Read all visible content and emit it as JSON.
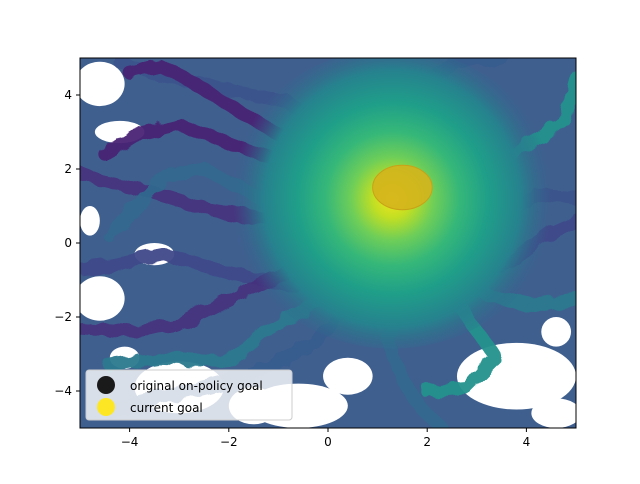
{
  "chart_data": {
    "type": "scatter",
    "title": "",
    "xlabel": "",
    "ylabel": "",
    "xlim": [
      -5,
      5
    ],
    "ylim": [
      -5,
      5
    ],
    "xticks": [
      -4,
      -2,
      0,
      2,
      4
    ],
    "yticks": [
      -4,
      -2,
      0,
      2,
      4
    ],
    "grid": false,
    "colormap": "viridis",
    "legend": {
      "location": "lower-left",
      "entries": [
        {
          "label": "original on-policy goal",
          "color": "#1a1a1a"
        },
        {
          "label": "current goal",
          "color": "#fde725"
        }
      ]
    },
    "current_goal": {
      "x": 1.5,
      "y": 1.5,
      "radius": 0.6,
      "color": "#d4b41c"
    },
    "trajectory_density_center": {
      "x": 1.3,
      "y": 1.2
    },
    "background_color": "#3f5f8f",
    "trajectories": [
      {
        "name": "",
        "points": [
          [
            1.3,
            1.2
          ],
          [
            0.2,
            0.4
          ],
          [
            -1.0,
            0.6
          ],
          [
            -2.4,
            0.9
          ],
          [
            -3.6,
            1.4
          ],
          [
            -4.6,
            1.7
          ],
          [
            -5.0,
            1.9
          ]
        ]
      },
      {
        "name": "",
        "points": [
          [
            1.3,
            1.2
          ],
          [
            0.5,
            -0.6
          ],
          [
            -0.6,
            -1.2
          ],
          [
            -2.0,
            -0.8
          ],
          [
            -3.3,
            -0.3
          ],
          [
            -4.4,
            -0.6
          ],
          [
            -5.0,
            -0.7
          ]
        ]
      },
      {
        "name": "",
        "points": [
          [
            1.3,
            1.2
          ],
          [
            0.6,
            -1.6
          ],
          [
            -0.4,
            -2.8
          ],
          [
            -1.6,
            -3.6
          ],
          [
            -2.8,
            -4.0
          ],
          [
            -3.8,
            -4.3
          ],
          [
            -4.4,
            -4.6
          ]
        ]
      },
      {
        "name": "",
        "points": [
          [
            1.3,
            1.2
          ],
          [
            1.6,
            -1.2
          ],
          [
            1.2,
            -2.6
          ],
          [
            1.5,
            -3.7
          ],
          [
            1.9,
            -4.5
          ],
          [
            2.3,
            -5.0
          ]
        ]
      },
      {
        "name": "",
        "points": [
          [
            1.3,
            1.2
          ],
          [
            2.4,
            -0.4
          ],
          [
            3.2,
            -1.4
          ],
          [
            4.2,
            -1.7
          ],
          [
            5.0,
            -1.5
          ]
        ]
      },
      {
        "name": "",
        "points": [
          [
            1.3,
            1.2
          ],
          [
            2.8,
            1.6
          ],
          [
            4.0,
            2.6
          ],
          [
            4.8,
            3.4
          ],
          [
            5.0,
            4.4
          ]
        ]
      },
      {
        "name": "",
        "points": [
          [
            1.3,
            1.2
          ],
          [
            0.3,
            2.8
          ],
          [
            -0.8,
            3.8
          ],
          [
            -2.2,
            4.2
          ],
          [
            -3.6,
            4.6
          ],
          [
            -4.2,
            4.9
          ]
        ]
      },
      {
        "name": "",
        "points": [
          [
            1.3,
            1.2
          ],
          [
            -0.4,
            2.0
          ],
          [
            -1.8,
            2.6
          ],
          [
            -3.0,
            3.2
          ],
          [
            -3.9,
            2.9
          ],
          [
            -4.5,
            2.4
          ]
        ]
      },
      {
        "name": "",
        "points": [
          [
            1.3,
            1.2
          ],
          [
            0.9,
            0.2
          ],
          [
            -0.4,
            -0.5
          ],
          [
            -1.8,
            -1.4
          ],
          [
            -3.0,
            -2.2
          ],
          [
            -4.0,
            -2.4
          ],
          [
            -5.0,
            -2.3
          ]
        ]
      },
      {
        "name": "",
        "points": [
          [
            1.3,
            1.2
          ],
          [
            2.2,
            0.1
          ],
          [
            3.0,
            -0.9
          ],
          [
            3.7,
            -0.5
          ],
          [
            4.5,
            0.3
          ],
          [
            5.0,
            0.6
          ]
        ]
      },
      {
        "name": "",
        "points": [
          [
            1.3,
            1.2
          ],
          [
            1.1,
            3.0
          ],
          [
            1.8,
            4.2
          ],
          [
            2.6,
            4.9
          ],
          [
            3.5,
            5.0
          ]
        ]
      },
      {
        "name": "",
        "points": [
          [
            1.3,
            1.2
          ],
          [
            -1.2,
            1.1
          ],
          [
            -2.5,
            2.0
          ],
          [
            -3.3,
            1.8
          ],
          [
            -4.0,
            0.8
          ],
          [
            -4.4,
            0.2
          ]
        ]
      },
      {
        "name": "",
        "points": [
          [
            1.3,
            1.2
          ],
          [
            -0.2,
            -1.6
          ],
          [
            -1.2,
            -2.3
          ],
          [
            -2.0,
            -3.2
          ],
          [
            -3.4,
            -3.1
          ],
          [
            -4.4,
            -3.3
          ]
        ]
      },
      {
        "name": "",
        "points": [
          [
            1.3,
            1.2
          ],
          [
            2.9,
            -2.2
          ],
          [
            3.4,
            -3.1
          ],
          [
            2.8,
            -3.9
          ],
          [
            2.0,
            -4.0
          ]
        ]
      },
      {
        "name": "",
        "points": [
          [
            1.3,
            1.2
          ],
          [
            3.5,
            0.6
          ],
          [
            4.2,
            1.3
          ],
          [
            5.0,
            1.2
          ]
        ]
      },
      {
        "name": "",
        "points": [
          [
            1.3,
            1.2
          ],
          [
            -1.6,
            3.4
          ],
          [
            -2.8,
            4.4
          ],
          [
            -3.4,
            4.8
          ],
          [
            -4.0,
            4.6
          ]
        ]
      }
    ]
  }
}
